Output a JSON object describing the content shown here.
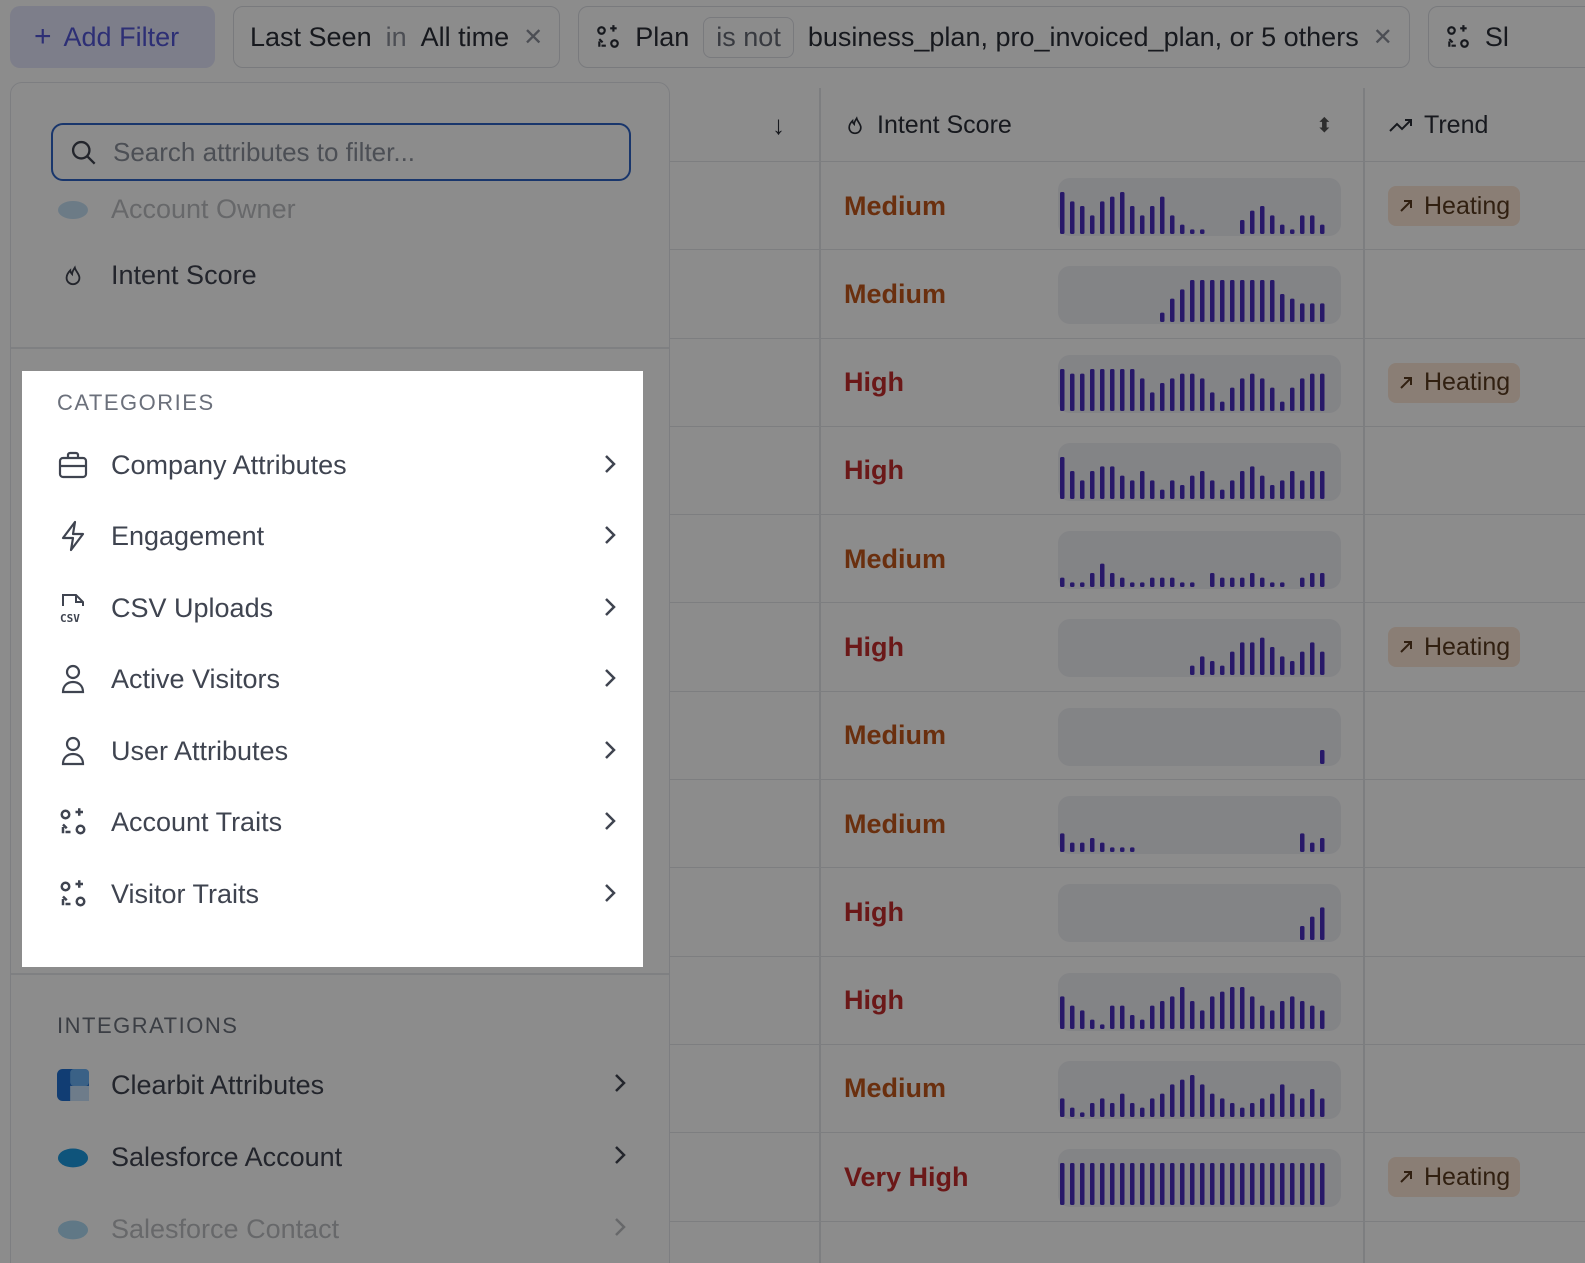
{
  "filter_bar": {
    "add_filter_label": "Add Filter",
    "chips": [
      {
        "field": "Last Seen",
        "operator": "in",
        "value": "All time"
      },
      {
        "field": "Plan",
        "operator": "is not",
        "value": "business_plan, pro_invoiced_plan, or 5 others"
      },
      {
        "field": "Sl"
      }
    ]
  },
  "table": {
    "columns": {
      "intent": "Intent Score",
      "trend": "Trend"
    },
    "rows": [
      {
        "score": "Medium",
        "trend": "Heating",
        "bars": [
          9,
          7,
          6,
          4,
          7,
          8,
          9,
          6,
          4,
          6,
          8,
          4,
          2,
          1,
          1,
          0,
          0,
          0,
          3,
          5,
          6,
          4,
          2,
          1,
          4,
          4,
          2
        ]
      },
      {
        "score": "Medium",
        "trend": "",
        "bars": [
          0,
          0,
          0,
          0,
          0,
          0,
          0,
          0,
          0,
          0,
          2,
          5,
          7,
          9,
          9,
          9,
          9,
          9,
          9,
          9,
          9,
          9,
          6,
          5,
          4,
          4,
          4
        ]
      },
      {
        "score": "High",
        "trend": "Heating",
        "bars": [
          9,
          8,
          8,
          9,
          9,
          9,
          9,
          9,
          7,
          4,
          6,
          7,
          8,
          8,
          7,
          4,
          2,
          5,
          7,
          8,
          7,
          5,
          2,
          5,
          7,
          8,
          8
        ]
      },
      {
        "score": "High",
        "trend": "",
        "bars": [
          9,
          6,
          4,
          6,
          7,
          7,
          5,
          4,
          6,
          4,
          2,
          4,
          3,
          5,
          6,
          4,
          2,
          4,
          6,
          7,
          5,
          3,
          4,
          6,
          4,
          6,
          6
        ]
      },
      {
        "score": "Medium",
        "trend": "",
        "bars": [
          2,
          1,
          1,
          3,
          5,
          3,
          2,
          1,
          1,
          2,
          2,
          2,
          1,
          1,
          0,
          3,
          2,
          2,
          2,
          3,
          2,
          1,
          1,
          0,
          2,
          3,
          3
        ]
      },
      {
        "score": "High",
        "trend": "Heating",
        "bars": [
          0,
          0,
          0,
          0,
          0,
          0,
          0,
          0,
          0,
          0,
          0,
          0,
          0,
          2,
          4,
          3,
          2,
          5,
          7,
          7,
          8,
          6,
          4,
          3,
          5,
          7,
          5
        ]
      },
      {
        "score": "Medium",
        "trend": "",
        "bars": [
          0,
          0,
          0,
          0,
          0,
          0,
          0,
          0,
          0,
          0,
          0,
          0,
          0,
          0,
          0,
          0,
          0,
          0,
          0,
          0,
          0,
          0,
          0,
          0,
          0,
          0,
          3
        ]
      },
      {
        "score": "Medium",
        "trend": "",
        "bars": [
          4,
          2,
          2,
          3,
          2,
          1,
          1,
          1,
          0,
          0,
          0,
          0,
          0,
          0,
          0,
          0,
          0,
          0,
          0,
          0,
          0,
          0,
          0,
          0,
          4,
          2,
          3
        ]
      },
      {
        "score": "High",
        "trend": "",
        "bars": [
          0,
          0,
          0,
          0,
          0,
          0,
          0,
          0,
          0,
          0,
          0,
          0,
          0,
          0,
          0,
          0,
          0,
          0,
          0,
          0,
          0,
          0,
          0,
          0,
          3,
          5,
          7
        ]
      },
      {
        "score": "High",
        "trend": "",
        "bars": [
          7,
          5,
          4,
          2,
          1,
          5,
          5,
          3,
          2,
          5,
          6,
          7,
          9,
          6,
          4,
          7,
          8,
          9,
          9,
          7,
          5,
          4,
          6,
          7,
          6,
          5,
          4
        ]
      },
      {
        "score": "Medium",
        "trend": "",
        "bars": [
          4,
          2,
          1,
          3,
          4,
          3,
          5,
          3,
          2,
          4,
          5,
          7,
          8,
          9,
          7,
          5,
          4,
          3,
          2,
          3,
          4,
          5,
          7,
          5,
          4,
          6,
          4
        ]
      },
      {
        "score": "Very High",
        "trend": "Heating",
        "bars": [
          9,
          9,
          9,
          9,
          9,
          9,
          9,
          9,
          9,
          9,
          9,
          9,
          9,
          9,
          9,
          9,
          9,
          9,
          9,
          9,
          9,
          9,
          9,
          9,
          9,
          9,
          9
        ]
      }
    ]
  },
  "panel": {
    "search_placeholder": "Search attributes to filter...",
    "top_items": [
      {
        "label": "Account Owner"
      },
      {
        "label": "Intent Score"
      }
    ],
    "categories_label": "CATEGORIES",
    "categories": [
      {
        "label": "Company Attributes",
        "icon": "briefcase-icon"
      },
      {
        "label": "Engagement",
        "icon": "lightning-icon"
      },
      {
        "label": "CSV Uploads",
        "icon": "csv-file-icon"
      },
      {
        "label": "Active Visitors",
        "icon": "user-icon"
      },
      {
        "label": "User Attributes",
        "icon": "user-icon"
      },
      {
        "label": "Account Traits",
        "icon": "traits-icon"
      },
      {
        "label": "Visitor Traits",
        "icon": "traits-icon"
      }
    ],
    "integrations_label": "INTEGRATIONS",
    "integrations": [
      {
        "label": "Clearbit Attributes",
        "icon": "clearbit-icon"
      },
      {
        "label": "Salesforce Account",
        "icon": "salesforce-icon"
      },
      {
        "label": "Salesforce Contact",
        "icon": "salesforce-icon"
      }
    ]
  },
  "colors": {
    "accent": "#5356d6",
    "bar": "#4a2fc0",
    "medium": "#c2571a",
    "high": "#c42d2d",
    "heating_bg": "#fbe6d6",
    "search_border": "#2d63c4"
  }
}
